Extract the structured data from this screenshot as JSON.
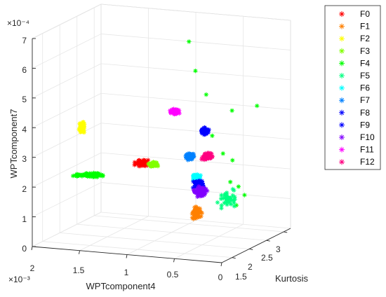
{
  "chart_data": {
    "type": "scatter",
    "projection": "3d",
    "xlabel": "WPTcomponent4",
    "ylabel": "Kurtosis",
    "zlabel": "WPTcomponent7",
    "xlim": [
      0,
      0.002
    ],
    "ylim": [
      1.2,
      3.2
    ],
    "zlim": [
      0,
      0.0007
    ],
    "x_exponent_label": "×10⁻³",
    "z_exponent_label": "×10⁻⁴",
    "x_ticks": [
      {
        "value": 0.002,
        "label": "2"
      },
      {
        "value": 0.0015,
        "label": "1.5"
      },
      {
        "value": 0.001,
        "label": "1"
      },
      {
        "value": 0.0005,
        "label": "0.5"
      },
      {
        "value": 0,
        "label": "0"
      }
    ],
    "y_ticks": [
      {
        "value": 1.5,
        "label": "1.5"
      },
      {
        "value": 2,
        "label": "2"
      },
      {
        "value": 2.5,
        "label": "2.5"
      },
      {
        "value": 3,
        "label": "3"
      }
    ],
    "z_ticks": [
      {
        "value": 0,
        "label": "0"
      },
      {
        "value": 0.0001,
        "label": "1"
      },
      {
        "value": 0.0002,
        "label": "2"
      },
      {
        "value": 0.0003,
        "label": "3"
      },
      {
        "value": 0.0004,
        "label": "4"
      },
      {
        "value": 0.0005,
        "label": "5"
      },
      {
        "value": 0.0006,
        "label": "6"
      },
      {
        "value": 0.0007,
        "label": "7"
      }
    ],
    "grid": true,
    "marker": "asterisk",
    "legend_position": "top-right",
    "series": [
      {
        "name": "F0",
        "color": "#ff0000",
        "cluster": {
          "x": 0.00115,
          "y": 2.05,
          "z": 0.000255
        }
      },
      {
        "name": "F1",
        "color": "#ff8000",
        "cluster": {
          "x": 0.00045,
          "y": 1.7,
          "z": 0.000125
        }
      },
      {
        "name": "F2",
        "color": "#ffff00",
        "cluster": {
          "x": 0.00195,
          "y": 2.5,
          "z": 0.000325
        }
      },
      {
        "name": "F3",
        "color": "#80ff00",
        "cluster": {
          "x": 0.00105,
          "y": 2.1,
          "z": 0.00025
        }
      },
      {
        "name": "F4",
        "color": "#00ff00",
        "cluster": {
          "x": 0.0017,
          "y": 2.05,
          "z": 0.0002
        },
        "outliers": [
          {
            "x": 0.0008,
            "y": 2.45,
            "z": 0.00065
          },
          {
            "x": 0.00075,
            "y": 2.5,
            "z": 0.00055
          },
          {
            "x": 0.0006,
            "y": 2.4,
            "z": 0.00048
          },
          {
            "x": 0.0005,
            "y": 2.3,
            "z": 0.00035
          },
          {
            "x": 0.00035,
            "y": 2.2,
            "z": 0.0003
          },
          {
            "x": 0.0002,
            "y": 2.0,
            "z": 0.00022
          },
          {
            "x": 0.00015,
            "y": 2.1,
            "z": 0.0002
          },
          {
            "x": 0.0001,
            "y": 1.9,
            "z": 0.00015
          },
          {
            "x": 5e-05,
            "y": 2.0,
            "z": 0.00018
          },
          {
            "x": 0.00025,
            "y": 2.2,
            "z": 0.00028
          },
          {
            "x": 0.0004,
            "y": 2.6,
            "z": 0.00042
          },
          {
            "x": 0.0001,
            "y": 2.5,
            "z": 0.00045
          }
        ]
      },
      {
        "name": "F5",
        "color": "#00ff80",
        "cluster": {
          "x": 0.0003,
          "y": 2.2,
          "z": 0.00015
        }
      },
      {
        "name": "F6",
        "color": "#00ffff",
        "cluster": {
          "x": 0.0006,
          "y": 2.1,
          "z": 0.00022
        }
      },
      {
        "name": "F7",
        "color": "#0080ff",
        "cluster": {
          "x": 0.0007,
          "y": 2.2,
          "z": 0.00028
        }
      },
      {
        "name": "F8",
        "color": "#0000ff",
        "cluster": {
          "x": 0.00055,
          "y": 2.05,
          "z": 0.0002
        }
      },
      {
        "name": "F9",
        "color": "#0000ff",
        "cluster": {
          "x": 0.00065,
          "y": 2.5,
          "z": 0.00035
        }
      },
      {
        "name": "F10",
        "color": "#8000ff",
        "cluster": {
          "x": 0.0005,
          "y": 1.95,
          "z": 0.00018
        }
      },
      {
        "name": "F11",
        "color": "#ff00ff",
        "cluster": {
          "x": 0.00095,
          "y": 2.45,
          "z": 0.00041
        }
      },
      {
        "name": "F12",
        "color": "#ff0080",
        "cluster": {
          "x": 0.00055,
          "y": 2.3,
          "z": 0.00028
        }
      }
    ]
  }
}
